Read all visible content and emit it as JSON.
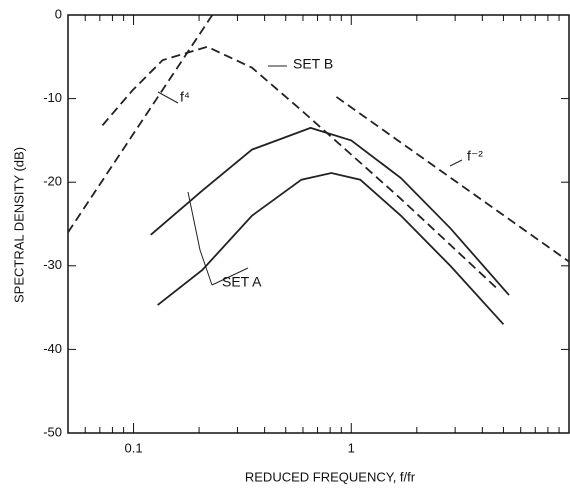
{
  "chart_data": {
    "type": "line",
    "xlabel": "REDUCED FREQUENCY,  f/fr",
    "ylabel": "SPECTRAL  DENSITY  (dB)",
    "xscale": "log",
    "xlim": [
      0.05,
      10
    ],
    "xticks": [
      0.1,
      1
    ],
    "ylim": [
      -50,
      0
    ],
    "yticks": [
      0,
      -10,
      -20,
      -30,
      -40,
      -50
    ],
    "grid": false,
    "series": [
      {
        "name": "SET B",
        "color": "#222",
        "style": "dashed",
        "x": [
          0.072,
          0.099,
          0.136,
          0.218,
          0.35,
          0.59,
          1,
          1.69,
          2.85,
          4.8
        ],
        "values": [
          -13.2,
          -9,
          -5.4,
          -3.8,
          -6.3,
          -11.4,
          -16.7,
          -22,
          -27.5,
          -33
        ]
      },
      {
        "name": "f⁴",
        "color": "#222",
        "style": "dashed",
        "x": [
          0.05,
          0.23
        ],
        "values": [
          -26,
          0
        ]
      },
      {
        "name": "f⁻²",
        "color": "#222",
        "style": "dashed",
        "x": [
          0.855,
          10
        ],
        "values": [
          -9.8,
          -29.5
        ]
      },
      {
        "color": "#222",
        "style": "solid",
        "x": [
          0.12,
          0.207,
          0.35,
          0.65,
          1,
          1.69,
          2.85,
          5.3
        ],
        "values": [
          -26.3,
          -21,
          -16.1,
          -13.5,
          -15,
          -19.5,
          -25.5,
          -33.5
        ]
      },
      {
        "color": "#222",
        "style": "solid",
        "x": [
          0.129,
          0.207,
          0.35,
          0.59,
          0.81,
          1.1,
          1.69,
          2.85,
          5
        ],
        "values": [
          -34.7,
          -30.5,
          -24,
          -19.7,
          -18.9,
          -19.7,
          -24,
          -30,
          -37
        ]
      }
    ],
    "set_a_label": "SET A"
  }
}
